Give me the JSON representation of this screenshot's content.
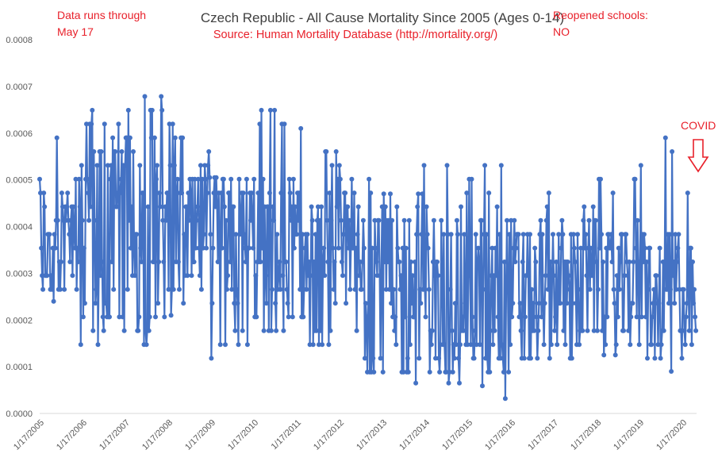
{
  "chart_data": {
    "type": "line",
    "title": "Czech Republic - All Cause Mortality Since 2005 (Ages 0-14)",
    "subtitle": "Source: Human Mortality Database (http://mortality.org/)",
    "annotations": {
      "data_note_line1": "Data runs through",
      "data_note_line2": "May 17",
      "schools_line1": "Reopened schools:",
      "schools_line2": "NO",
      "covid_label": "COVID"
    },
    "ylim": [
      0,
      0.0008
    ],
    "y_ticks": [
      "0.0000",
      "0.0001",
      "0.0002",
      "0.0003",
      "0.0004",
      "0.0005",
      "0.0006",
      "0.0007",
      "0.0008"
    ],
    "x_ticks": [
      "1/17/2005",
      "1/17/2006",
      "1/17/2007",
      "1/17/2008",
      "1/17/2009",
      "1/17/2010",
      "1/17/2011",
      "1/17/2012",
      "1/17/2013",
      "1/17/2014",
      "1/17/2015",
      "1/17/2016",
      "1/17/2017",
      "1/17/2018",
      "1/17/2019",
      "1/17/2020"
    ],
    "x_start": "2005-01-17",
    "x_end": "2020-05-17",
    "grid": false,
    "legend": "none",
    "series": [
      {
        "color": "#4472c4",
        "yearly_levels": [
          {
            "year": 2005,
            "mean": 0.000372,
            "min": 0.00024,
            "max": 0.00062
          },
          {
            "year": 2006,
            "mean": 0.000375,
            "min": 0.000138,
            "max": 0.000665
          },
          {
            "year": 2007,
            "mean": 0.000385,
            "min": 0.000138,
            "max": 0.000705
          },
          {
            "year": 2008,
            "mean": 0.000375,
            "min": 0.00021,
            "max": 0.000635
          },
          {
            "year": 2009,
            "mean": 0.00033,
            "min": 0.000105,
            "max": 0.000505
          },
          {
            "year": 2010,
            "mean": 0.00034,
            "min": 0.00015,
            "max": 0.000655
          },
          {
            "year": 2011,
            "mean": 0.00031,
            "min": 0.000135,
            "max": 0.00061
          },
          {
            "year": 2012,
            "mean": 0.0003,
            "min": 6.5e-05,
            "max": 0.000535
          },
          {
            "year": 2013,
            "mean": 0.000275,
            "min": 6.5e-05,
            "max": 0.00047
          },
          {
            "year": 2014,
            "mean": 0.00026,
            "min": 6.5e-05,
            "max": 0.00059
          },
          {
            "year": 2015,
            "mean": 0.000255,
            "min": 3.2e-05,
            "max": 0.00055
          },
          {
            "year": 2016,
            "mean": 0.000265,
            "min": 9.5e-05,
            "max": 0.000495
          },
          {
            "year": 2017,
            "mean": 0.000265,
            "min": 9.5e-05,
            "max": 0.00047
          },
          {
            "year": 2018,
            "mean": 0.00027,
            "min": 0.000125,
            "max": 0.000525
          },
          {
            "year": 2019,
            "mean": 0.000255,
            "min": 9e-05,
            "max": 0.00061
          },
          {
            "year": 2020,
            "mean": 0.00023,
            "min": 8.8e-05,
            "max": 0.00052
          }
        ]
      }
    ]
  }
}
